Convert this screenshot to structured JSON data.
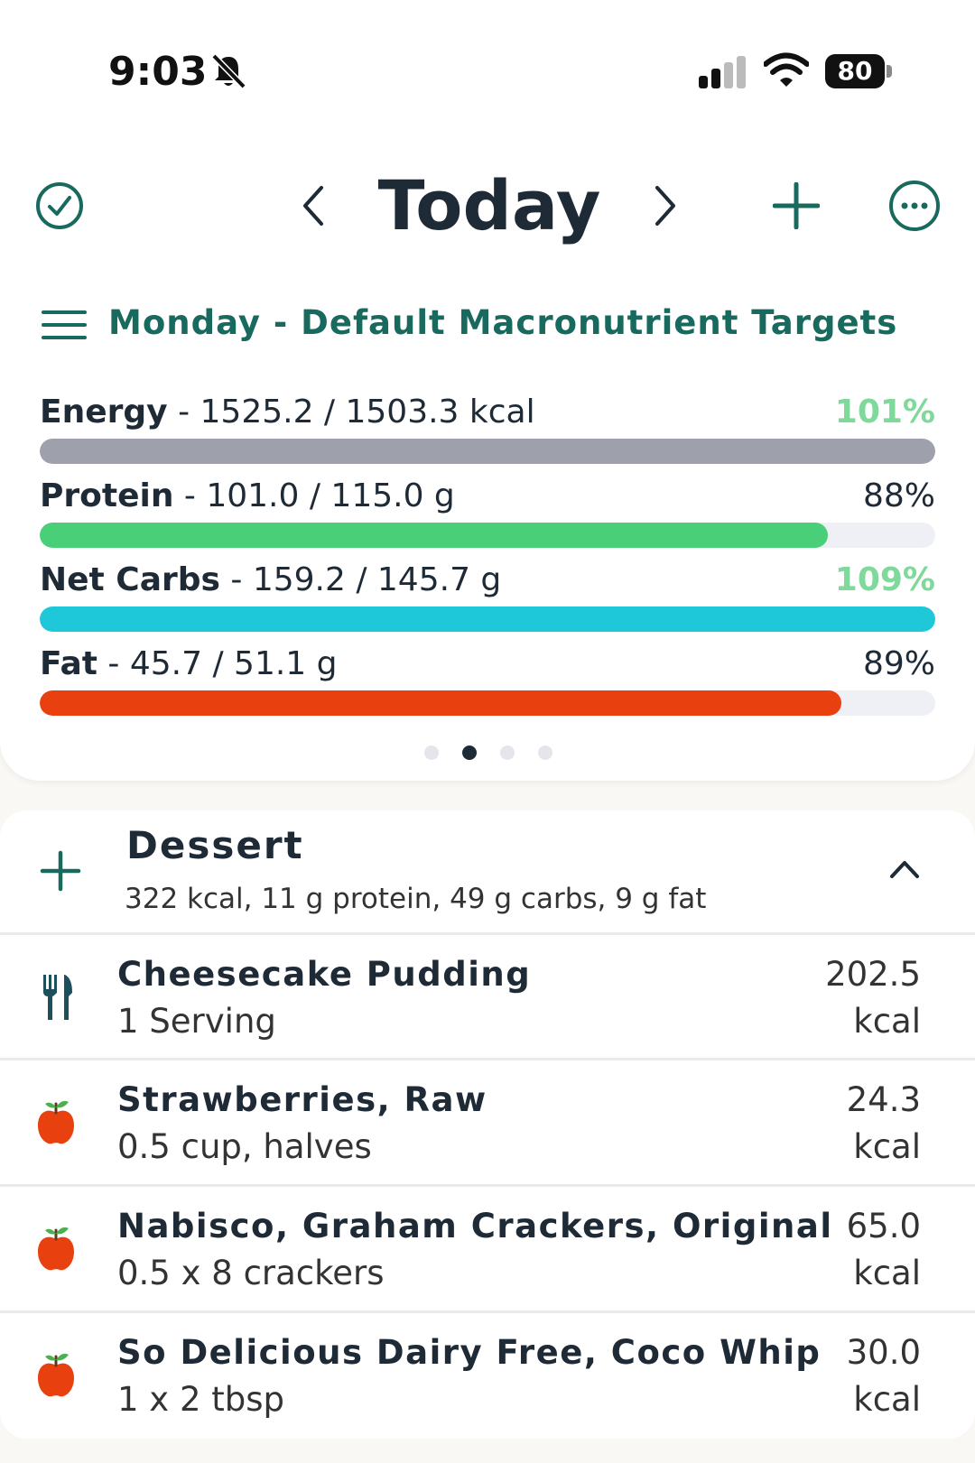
{
  "status_bar": {
    "time": "9:03",
    "battery": "80"
  },
  "header": {
    "title": "Today"
  },
  "targets": {
    "title": "Monday - Default Macronutrient Targets"
  },
  "macros": [
    {
      "name": "Energy",
      "detail": " - 1525.2 / 1503.3 kcal",
      "percent": "101%",
      "fill_fraction": 1.0,
      "color": "#9ea0ac",
      "over": true
    },
    {
      "name": "Protein",
      "detail": " - 101.0 / 115.0 g",
      "percent": "88%",
      "fill_fraction": 0.88,
      "color": "#48cf78",
      "over": false
    },
    {
      "name": "Net Carbs",
      "detail": " - 159.2 / 145.7 g",
      "percent": "109%",
      "fill_fraction": 1.0,
      "color": "#1ec8d8",
      "over": true
    },
    {
      "name": "Fat",
      "detail": " - 45.7 / 51.1 g",
      "percent": "89%",
      "fill_fraction": 0.895,
      "color": "#e8410f",
      "over": false
    }
  ],
  "pager": {
    "count": 4,
    "active": 1
  },
  "meal": {
    "name": "Dessert",
    "summary": "322 kcal, 11 g protein, 49 g carbs, 9 g fat",
    "items": [
      {
        "name": "Cheesecake Pudding",
        "portion": "1 Serving",
        "kcal": "202.5",
        "unit": "kcal",
        "icon": "fork-knife-icon"
      },
      {
        "name": "Strawberries, Raw",
        "portion": "0.5 cup, halves",
        "kcal": "24.3",
        "unit": "kcal",
        "icon": "apple-icon"
      },
      {
        "name": "Nabisco, Graham Crackers, Original",
        "portion": "0.5 x 8 crackers",
        "kcal": "65.0",
        "unit": "kcal",
        "icon": "apple-icon"
      },
      {
        "name": "So Delicious Dairy Free, Coco Whip",
        "portion": "1 x 2 tbsp",
        "kcal": "30.0",
        "unit": "kcal",
        "icon": "apple-icon"
      }
    ]
  }
}
